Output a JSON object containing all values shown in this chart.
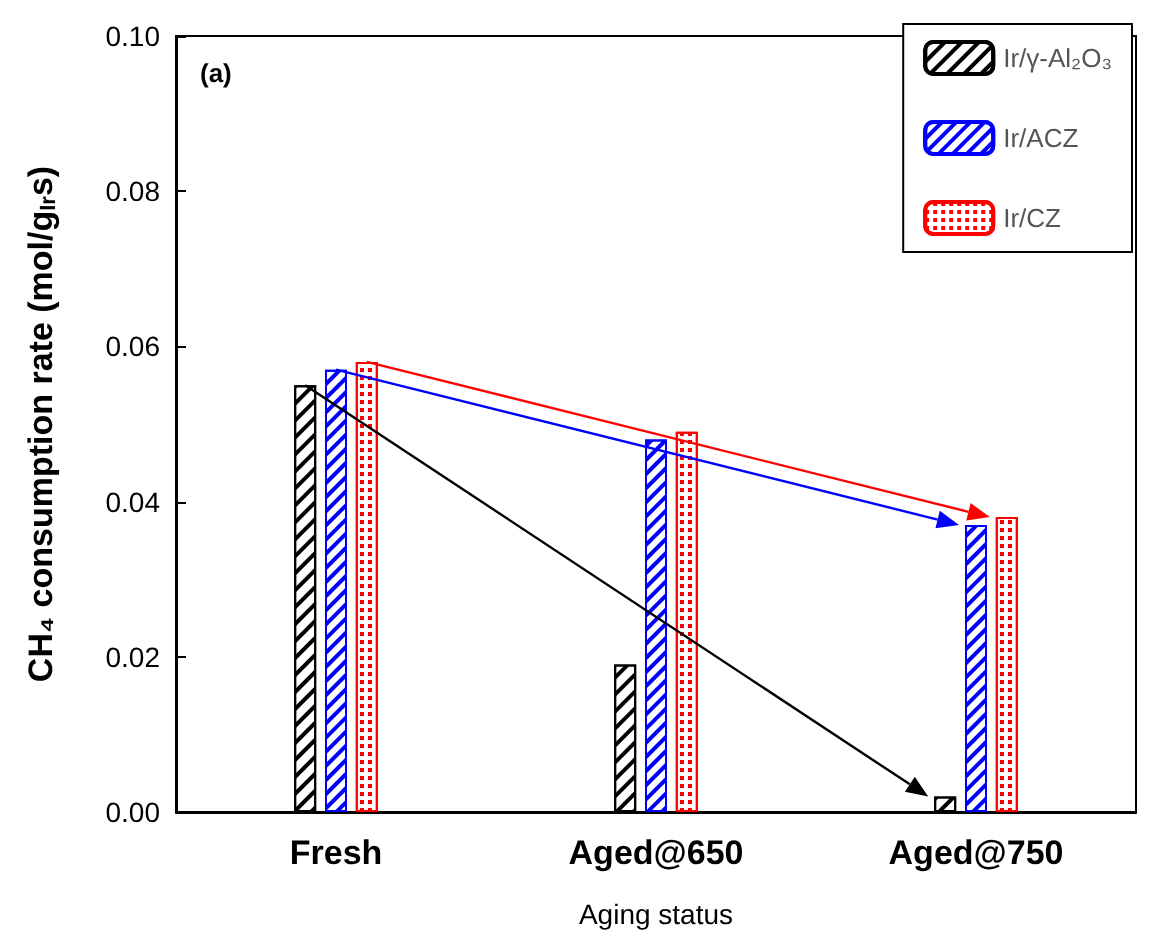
{
  "chart_data": {
    "type": "bar",
    "xlabel": "Aging status",
    "ylabel": "CH₄ consumption rate (mol/g$_{Ir}$s)",
    "annotations": [
      "(a)"
    ],
    "categories": [
      "Fresh",
      "Aged@650",
      "Aged@750"
    ],
    "series": [
      {
        "name": "Ir/γ-Al₂O₃",
        "color": "#000000",
        "values": [
          0.055,
          0.019,
          0.002
        ]
      },
      {
        "name": "Ir/ACZ",
        "color": "#0000ff",
        "values": [
          0.057,
          0.048,
          0.037
        ]
      },
      {
        "name": "Ir/CZ",
        "color": "#ff0000",
        "values": [
          0.058,
          0.049,
          0.038
        ]
      }
    ],
    "ylim": [
      0,
      0.1
    ],
    "yticks": [
      {
        "value": 0,
        "label": "0.00"
      },
      {
        "value": 0.02,
        "label": "0.02"
      },
      {
        "value": 0.04,
        "label": "0.04"
      },
      {
        "value": 0.06,
        "label": "0.06"
      },
      {
        "value": 0.08,
        "label": "0.08"
      },
      {
        "value": 0.1,
        "label": "0.10"
      }
    ],
    "grid": false,
    "legend": "top right"
  }
}
